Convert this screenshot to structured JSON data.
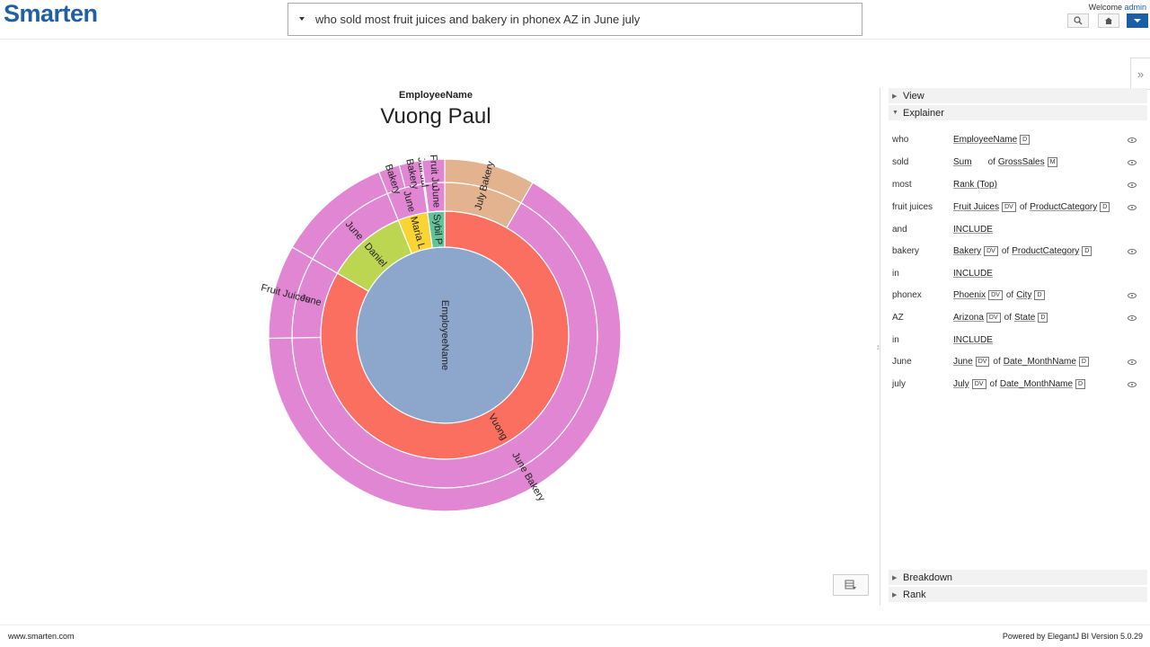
{
  "app": {
    "logo": "Smarten"
  },
  "search": {
    "query": "who sold most fruit juices and bakery in phonex AZ in June july"
  },
  "header": {
    "welcome_text": "Welcome",
    "username": "admin"
  },
  "chart_header": {
    "dimension_label": "EmployeeName",
    "selected_value": "Vuong Paul"
  },
  "chart_data": {
    "type": "sunburst",
    "root": "EmployeeName",
    "colors": {
      "employee": "#fa6f5f",
      "root": "#8ca7cb",
      "month": "#e086d3",
      "bakery_month": "#e3b28f"
    },
    "rings": [
      {
        "level": "employee",
        "segments": [
          {
            "label": "Vuong",
            "value": 300,
            "color": "#fa6f5f"
          },
          {
            "label": "Daniel",
            "value": 38,
            "color": "#bcd651"
          },
          {
            "label": "Maria L",
            "value": 14,
            "color": "#f9d433"
          },
          {
            "label": "Sybil P",
            "value": 8,
            "color": "#62c29a"
          }
        ]
      },
      {
        "level": "month",
        "segments": [
          {
            "label": "July",
            "value": 30,
            "color": "#e3b28f"
          },
          {
            "label": "",
            "value": 239,
            "color": "#e086d3"
          },
          {
            "label": "June",
            "value": 31,
            "color": "#e086d3"
          },
          {
            "label": "June",
            "value": 38,
            "color": "#e086d3"
          },
          {
            "label": "June",
            "value": 14,
            "color": "#e086d3"
          },
          {
            "label": "",
            "value": 0.5,
            "color": "#e086d3"
          },
          {
            "label": "June",
            "value": 7.5,
            "color": "#e086d3"
          }
        ]
      },
      {
        "level": "product",
        "segments": [
          {
            "label": "Bakery",
            "value": 30,
            "color": "#e3b28f"
          },
          {
            "label": "June Bakery",
            "value": 239,
            "color": "#e086d3"
          },
          {
            "label": "Fruit Juices",
            "value": 31,
            "color": "#e086d3"
          },
          {
            "label": "",
            "value": 38,
            "color": "#e086d3"
          },
          {
            "label": "Bakery",
            "value": 7,
            "color": "#e086d3"
          },
          {
            "label": "Bakery",
            "value": 7,
            "color": "#e086d3"
          },
          {
            "label": "Juli Jul",
            "value": 0.5,
            "color": "#e086d3"
          },
          {
            "label": "Fruit Ju",
            "value": 7.5,
            "color": "#e086d3"
          }
        ]
      }
    ]
  },
  "panel": {
    "sections": {
      "view": "View",
      "explainer": "Explainer",
      "breakdown": "Breakdown",
      "rank": "Rank"
    },
    "explainer_rows": [
      {
        "word": "who",
        "term": "EmployeeName",
        "tag": "D",
        "of": "",
        "parent": "",
        "parent_tag": "",
        "eye": true
      },
      {
        "word": "sold",
        "term": "Sum",
        "tag": "",
        "of": "of",
        "parent": "GrossSales",
        "parent_tag": "M",
        "eye": true
      },
      {
        "word": "most",
        "term": "Rank (Top)",
        "tag": "",
        "of": "",
        "parent": "",
        "parent_tag": "",
        "eye": true
      },
      {
        "word": "fruit juices",
        "term": "Fruit Juices",
        "tag": "DV",
        "of": "of",
        "parent": "ProductCategory",
        "parent_tag": "D",
        "eye": true
      },
      {
        "word": "and",
        "term": "INCLUDE",
        "tag": "",
        "of": "",
        "parent": "",
        "parent_tag": "",
        "eye": false
      },
      {
        "word": "bakery",
        "term": "Bakery",
        "tag": "DV",
        "of": "of",
        "parent": "ProductCategory",
        "parent_tag": "D",
        "eye": true
      },
      {
        "word": "in",
        "term": "INCLUDE",
        "tag": "",
        "of": "",
        "parent": "",
        "parent_tag": "",
        "eye": false
      },
      {
        "word": "phonex",
        "term": "Phoenix",
        "tag": "DV",
        "of": "of",
        "parent": "City",
        "parent_tag": "D",
        "eye": true
      },
      {
        "word": "AZ",
        "term": "Arizona",
        "tag": "DV",
        "of": "of",
        "parent": "State",
        "parent_tag": "D",
        "eye": true
      },
      {
        "word": "in",
        "term": "INCLUDE",
        "tag": "",
        "of": "",
        "parent": "",
        "parent_tag": "",
        "eye": false
      },
      {
        "word": "June",
        "term": "June",
        "tag": "DV",
        "of": "of",
        "parent": "Date_MonthName",
        "parent_tag": "D",
        "eye": true
      },
      {
        "word": "july",
        "term": "July",
        "tag": "DV",
        "of": "of",
        "parent": "Date_MonthName",
        "parent_tag": "D",
        "eye": true
      }
    ]
  },
  "footer": {
    "site": "www.smarten.com",
    "powered_by": "Powered by ElegantJ BI Version 5.0.29"
  }
}
